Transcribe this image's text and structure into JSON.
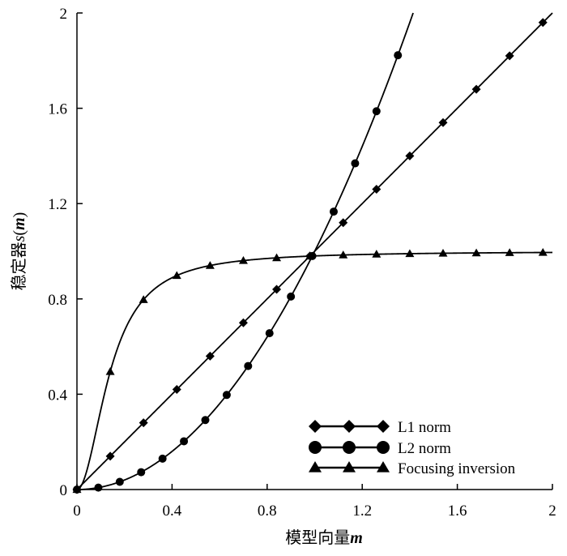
{
  "chart_data": {
    "type": "line",
    "xlabel_text": "模型向量",
    "xlabel_var": "m",
    "ylabel_text": "稳定器",
    "ylabel_func": "s",
    "ylabel_var": "m",
    "xlim": [
      0,
      2
    ],
    "ylim": [
      0,
      2
    ],
    "x_ticks": [
      "0",
      "0.4",
      "0.8",
      "1.2",
      "1.6",
      "2"
    ],
    "x_tick_values": [
      0,
      0.4,
      0.8,
      1.2,
      1.6,
      2
    ],
    "y_ticks": [
      "0",
      "0.4",
      "0.8",
      "1.2",
      "1.6",
      "2"
    ],
    "y_tick_values": [
      0,
      0.4,
      0.8,
      1.2,
      1.6,
      2
    ],
    "grid": false,
    "legend_position": "bottom-right",
    "series": [
      {
        "name": "L1 norm",
        "marker": "diamond",
        "formula": "x",
        "markers_x": [
          0,
          0.14,
          0.28,
          0.42,
          0.56,
          0.7,
          0.84,
          0.98,
          1.12,
          1.26,
          1.4,
          1.54,
          1.68,
          1.82,
          1.96
        ]
      },
      {
        "name": "L2 norm",
        "marker": "circle",
        "formula": "x^2",
        "markers_x": [
          0,
          0.09,
          0.18,
          0.27,
          0.36,
          0.45,
          0.54,
          0.63,
          0.72,
          0.81,
          0.9,
          0.99,
          1.08,
          1.17,
          1.26,
          1.35
        ]
      },
      {
        "name": "Focusing inversion",
        "marker": "triangle",
        "formula": "x^2/(x^2+0.02)",
        "markers_x": [
          0,
          0.14,
          0.28,
          0.42,
          0.56,
          0.7,
          0.84,
          0.98,
          1.12,
          1.26,
          1.4,
          1.54,
          1.68,
          1.82,
          1.96
        ]
      }
    ]
  }
}
